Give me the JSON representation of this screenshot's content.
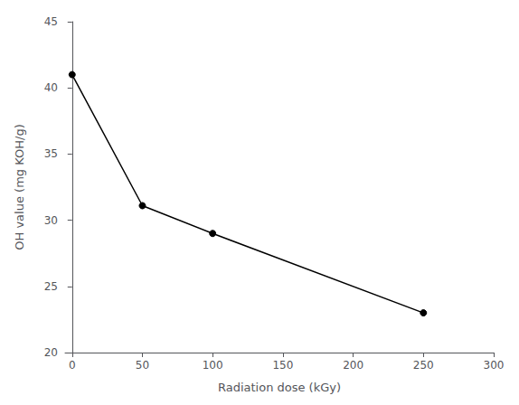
{
  "chart_data": {
    "type": "line",
    "x": [
      0,
      50,
      100,
      250
    ],
    "values": [
      41.0,
      31.1,
      29.0,
      23.0
    ],
    "color": "#000000",
    "marker": "circle",
    "xlabel": "Radiation dose (kGy)",
    "ylabel": "OH value (mg KOH/g)",
    "xlim": [
      -5,
      300
    ],
    "ylim": [
      20,
      45
    ],
    "xticks": [
      0,
      50,
      100,
      150,
      200,
      250,
      300
    ],
    "yticks": [
      20,
      25,
      30,
      35,
      40,
      45
    ],
    "grid": false
  }
}
